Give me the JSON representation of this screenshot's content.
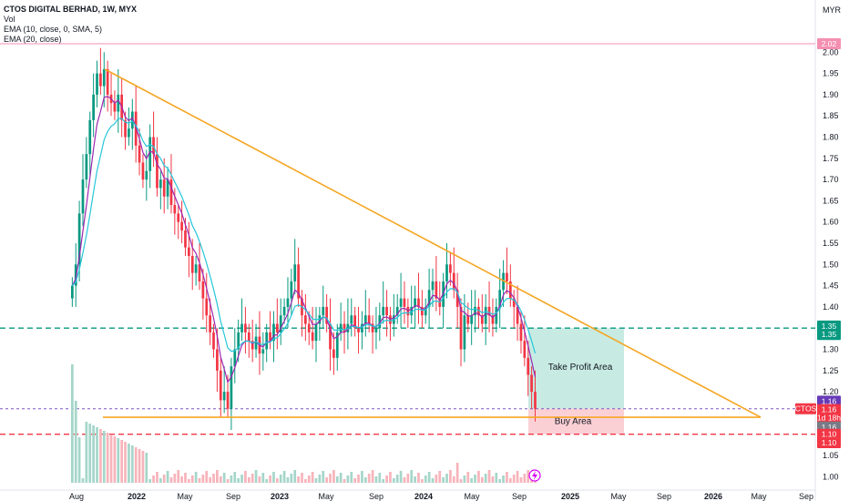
{
  "legend": {
    "title": "CTOS DIGITAL BERHAD, 1W, MYX",
    "vol": "Vol",
    "ema1": "EMA (10, close, 0, SMA, 5)",
    "ema2": "EMA (20, close)"
  },
  "currency": "MYR",
  "colors": {
    "up": "#089981",
    "down": "#f23645",
    "ema_fast": "#9c27b0",
    "ema_slow": "#26c6da",
    "trendline": "#f5a623",
    "take_profit_zone": "#c7ebe3",
    "buy_zone": "#fbd0d5",
    "tp_line": "#089981",
    "sl_line": "#f23645",
    "resistance_line": "#f48fb1",
    "price_line": "#7e57c2"
  },
  "chart_data": {
    "type": "candlestick",
    "symbol": "CTOS",
    "ylim": [
      0.96,
      2.06
    ],
    "y_ticks": [
      "1.00",
      "1.05",
      "1.10",
      "1.15",
      "1.20",
      "1.25",
      "1.30",
      "1.35",
      "1.40",
      "1.45",
      "1.50",
      "1.55",
      "1.60",
      "1.65",
      "1.70",
      "1.75",
      "1.80",
      "1.85",
      "1.90",
      "1.95",
      "2.00"
    ],
    "x_ticks": [
      "Aug",
      "2022",
      "May",
      "Sep",
      "2023",
      "May",
      "Sep",
      "2024",
      "May",
      "Sep",
      "2025",
      "May",
      "Sep",
      "2026",
      "May",
      "Sep"
    ],
    "weekly_close": [
      1.45,
      1.5,
      1.62,
      1.7,
      1.76,
      1.84,
      1.9,
      1.95,
      1.92,
      1.96,
      1.9,
      1.88,
      1.86,
      1.9,
      1.84,
      1.8,
      1.82,
      1.86,
      1.78,
      1.74,
      1.7,
      1.72,
      1.8,
      1.76,
      1.68,
      1.7,
      1.66,
      1.7,
      1.64,
      1.62,
      1.6,
      1.58,
      1.54,
      1.52,
      1.48,
      1.5,
      1.46,
      1.42,
      1.38,
      1.34,
      1.3,
      1.25,
      1.18,
      1.2,
      1.16,
      1.26,
      1.3,
      1.34,
      1.36,
      1.34,
      1.32,
      1.3,
      1.33,
      1.29,
      1.3,
      1.34,
      1.32,
      1.36,
      1.34,
      1.38,
      1.4,
      1.42,
      1.46,
      1.5,
      1.42,
      1.38,
      1.36,
      1.34,
      1.32,
      1.36,
      1.38,
      1.4,
      1.36,
      1.3,
      1.28,
      1.34,
      1.36,
      1.34,
      1.36,
      1.38,
      1.35,
      1.34,
      1.36,
      1.38,
      1.36,
      1.34,
      1.35,
      1.38,
      1.4,
      1.38,
      1.36,
      1.38,
      1.4,
      1.42,
      1.4,
      1.38,
      1.4,
      1.42,
      1.4,
      1.38,
      1.4,
      1.44,
      1.46,
      1.42,
      1.4,
      1.46,
      1.5,
      1.48,
      1.44,
      1.4,
      1.3,
      1.38,
      1.36,
      1.38,
      1.4,
      1.38,
      1.36,
      1.4,
      1.38,
      1.36,
      1.4,
      1.44,
      1.48,
      1.46,
      1.42,
      1.4,
      1.36,
      1.32,
      1.28,
      1.24,
      1.2,
      1.16
    ],
    "ema_fast_endpoints": [
      1.84,
      1.3
    ],
    "ema_slow_endpoints": [
      1.82,
      1.32
    ],
    "levels": {
      "resistance": {
        "value": 2.02,
        "label": "2.02"
      },
      "take_profit": {
        "value": 1.35,
        "label": "1.35"
      },
      "current": {
        "value": 1.16,
        "label": "1.16"
      },
      "stop_loss": {
        "value": 1.1,
        "label": "1.10"
      }
    },
    "trendline_upper": {
      "start": [
        "Dec 2021",
        1.96
      ],
      "end": [
        "Apr 2026",
        1.14
      ]
    },
    "trendline_lower": {
      "start": [
        "Dec 2021",
        1.14
      ],
      "end": [
        "Apr 2026",
        1.14
      ]
    },
    "zones": [
      {
        "label": "Take Profit Area",
        "from": 1.16,
        "to": 1.35
      },
      {
        "label": "Buy Area",
        "from": 1.1,
        "to": 1.16
      }
    ],
    "price_badges": [
      {
        "text": "1.35",
        "color": "#089981"
      },
      {
        "text": "1.35",
        "color": "#089981"
      },
      {
        "text": "1.16",
        "color": "#673ab7"
      },
      {
        "text": "1.16",
        "color": "#f23645"
      },
      {
        "text": "1d 18h",
        "color": "#f23645"
      },
      {
        "text": "1.16",
        "color": "#787b86"
      },
      {
        "text": "1.10",
        "color": "#f23645"
      },
      {
        "text": "1.10",
        "color": "#f23645"
      },
      {
        "text": "2.02",
        "color": "#f48fb1"
      }
    ],
    "symbol_badge": "CTOS"
  }
}
